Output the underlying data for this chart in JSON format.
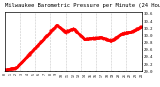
{
  "title": "Milwaukee Barometric Pressure per Minute (24 Hours)",
  "title_fontsize": 4.0,
  "line_color": "#FF0000",
  "bg_color": "#FFFFFF",
  "plot_bg": "#FFFFFF",
  "ylim": [
    29.0,
    30.65
  ],
  "ytick_vals": [
    29.0,
    29.2,
    29.4,
    29.6,
    29.8,
    30.0,
    30.2,
    30.4,
    30.6
  ],
  "num_points": 1440,
  "grid_color": "#C0C0C0",
  "num_vgrid": 9
}
